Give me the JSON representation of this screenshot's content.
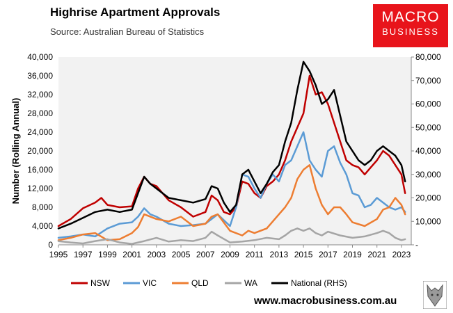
{
  "header": {
    "title": "Highrise Apartment Approvals",
    "subtitle": "Source: Australian Bureau of Statistics"
  },
  "logo": {
    "line1": "MACRO",
    "line2": "BUSINESS"
  },
  "footer": {
    "url": "www.macrobusiness.com.au"
  },
  "colors": {
    "nsw": "#c00000",
    "vic": "#5b9bd5",
    "qld": "#ed7d31",
    "wa": "#a5a5a5",
    "national": "#000000",
    "plot_bg": "#f2f2f2"
  },
  "chart_data": {
    "type": "line",
    "title": "Highrise Apartment Approvals",
    "ylabel": "Number (Rolling Annual)",
    "xlabel": "",
    "x_ticks": [
      "1995",
      "1997",
      "1999",
      "2001",
      "2003",
      "2005",
      "2007",
      "2009",
      "2011",
      "2013",
      "2015",
      "2017",
      "2019",
      "2021",
      "2023"
    ],
    "y_left_ticks": [
      "0",
      "4,000",
      "8,000",
      "12,000",
      "16,000",
      "20,000",
      "24,000",
      "28,000",
      "32,000",
      "36,000",
      "40,000"
    ],
    "y_right_ticks": [
      "-",
      "10,000",
      "20,000",
      "30,000",
      "40,000",
      "50,000",
      "60,000",
      "70,000",
      "80,000"
    ],
    "ylim_left": [
      0,
      40000
    ],
    "ylim_right": [
      0,
      80000
    ],
    "xlim": [
      1995,
      2023.8
    ],
    "legend": "bottom",
    "series": [
      {
        "name": "NSW",
        "axis": "left",
        "color": "#c00000",
        "x": [
          1995,
          1996,
          1997,
          1998,
          1998.5,
          1999,
          2000,
          2001,
          2001.5,
          2002,
          2002.5,
          2003,
          2004,
          2005,
          2006,
          2007,
          2007.5,
          2008,
          2008.5,
          2009,
          2009.5,
          2010,
          2010.5,
          2011,
          2011.5,
          2012,
          2012.5,
          2013,
          2013.5,
          2014,
          2014.5,
          2015,
          2015.5,
          2016,
          2016.5,
          2017,
          2017.5,
          2018,
          2018.5,
          2019,
          2019.5,
          2020,
          2020.5,
          2021,
          2021.5,
          2022,
          2022.5,
          2023,
          2023.3
        ],
        "y": [
          4000,
          5500,
          7800,
          9000,
          10000,
          8500,
          8000,
          8200,
          12000,
          14500,
          13000,
          12500,
          9500,
          8000,
          6000,
          7000,
          10500,
          9500,
          7000,
          6500,
          8000,
          13500,
          13000,
          11000,
          10000,
          12500,
          13500,
          15000,
          18000,
          22000,
          25000,
          28000,
          36000,
          32000,
          32500,
          30000,
          26000,
          22000,
          18000,
          17000,
          16500,
          15000,
          16500,
          18000,
          20000,
          19000,
          17000,
          15000,
          11000
        ]
      },
      {
        "name": "VIC",
        "axis": "left",
        "color": "#5b9bd5",
        "x": [
          1995,
          1996,
          1997,
          1998,
          1999,
          2000,
          2001,
          2001.5,
          2002,
          2002.5,
          2003,
          2004,
          2005,
          2006,
          2007,
          2007.5,
          2008,
          2009,
          2009.5,
          2010,
          2010.5,
          2011,
          2011.5,
          2012,
          2012.5,
          2013,
          2013.5,
          2014,
          2014.5,
          2015,
          2015.5,
          2016,
          2016.5,
          2017,
          2017.5,
          2018,
          2018.5,
          2019,
          2019.5,
          2020,
          2020.5,
          2021,
          2021.5,
          2022,
          2022.5,
          2023,
          2023.3
        ],
        "y": [
          1500,
          1800,
          2200,
          1800,
          3500,
          4500,
          4800,
          6000,
          7800,
          6500,
          6000,
          4500,
          4000,
          4200,
          4500,
          5500,
          6500,
          4000,
          8000,
          15000,
          14500,
          12000,
          10000,
          13000,
          15000,
          13500,
          17000,
          18000,
          21000,
          24000,
          18000,
          16000,
          14500,
          20000,
          21000,
          17500,
          15000,
          11000,
          10500,
          8000,
          8500,
          10000,
          9000,
          8000,
          7500,
          8000,
          7000
        ]
      },
      {
        "name": "QLD",
        "axis": "left",
        "color": "#ed7d31",
        "x": [
          1995,
          1996,
          1997,
          1998,
          1999,
          2000,
          2001,
          2001.5,
          2002,
          2003,
          2004,
          2005,
          2005.5,
          2006,
          2007,
          2007.5,
          2008,
          2009,
          2010,
          2010.5,
          2011,
          2012,
          2013,
          2013.5,
          2014,
          2014.5,
          2015,
          2015.5,
          2016,
          2016.5,
          2017,
          2017.5,
          2018,
          2018.5,
          2019,
          2020,
          2021,
          2021.5,
          2022,
          2022.5,
          2023,
          2023.3
        ],
        "y": [
          1000,
          1500,
          2200,
          2500,
          1000,
          1200,
          2500,
          3800,
          6500,
          5500,
          5000,
          6000,
          5000,
          4000,
          4500,
          6000,
          6500,
          3000,
          2000,
          3000,
          2500,
          3500,
          6500,
          8000,
          10000,
          14000,
          16000,
          17000,
          12000,
          8500,
          6500,
          8000,
          8000,
          6500,
          4800,
          4000,
          5500,
          7500,
          8000,
          10000,
          8500,
          6500
        ]
      },
      {
        "name": "WA",
        "axis": "left",
        "color": "#a5a5a5",
        "x": [
          1995,
          1996,
          1997,
          1998,
          1999,
          2000,
          2001,
          2002,
          2003,
          2004,
          2005,
          2006,
          2007,
          2007.5,
          2008,
          2009,
          2010,
          2011,
          2012,
          2013,
          2013.5,
          2014,
          2014.5,
          2015,
          2015.5,
          2016,
          2016.5,
          2017,
          2018,
          2019,
          2020,
          2021,
          2021.5,
          2022,
          2022.5,
          2023,
          2023.3
        ],
        "y": [
          800,
          500,
          300,
          800,
          1200,
          500,
          200,
          800,
          1500,
          700,
          1000,
          800,
          1500,
          2800,
          2000,
          500,
          700,
          1000,
          1500,
          1200,
          2000,
          3000,
          3500,
          3000,
          3500,
          2500,
          2000,
          2800,
          2000,
          1500,
          1800,
          2500,
          3000,
          2500,
          1500,
          1000,
          1200
        ]
      },
      {
        "name": "National (RHS)",
        "axis": "right",
        "color": "#000000",
        "x": [
          1995,
          1996,
          1997,
          1998,
          1999,
          2000,
          2001,
          2001.5,
          2002,
          2002.5,
          2003,
          2004,
          2005,
          2006,
          2007,
          2007.5,
          2008,
          2008.5,
          2009,
          2009.5,
          2010,
          2010.5,
          2011,
          2011.5,
          2012,
          2012.5,
          2013,
          2013.5,
          2014,
          2014.5,
          2015,
          2015.5,
          2016,
          2016.5,
          2017,
          2017.5,
          2018,
          2018.5,
          2019,
          2019.5,
          2020,
          2020.5,
          2021,
          2021.5,
          2022,
          2022.5,
          2023,
          2023.3
        ],
        "y": [
          7000,
          9000,
          11500,
          14000,
          15000,
          14000,
          15000,
          22000,
          29000,
          26000,
          24000,
          20000,
          19000,
          18000,
          19500,
          25000,
          24000,
          18000,
          14000,
          17000,
          30000,
          32000,
          27000,
          22000,
          26000,
          31000,
          34000,
          44000,
          52000,
          66000,
          78000,
          74000,
          68000,
          60000,
          62000,
          66000,
          55000,
          44000,
          40000,
          36000,
          34000,
          36000,
          40000,
          42000,
          40000,
          38000,
          34000,
          27000
        ]
      }
    ]
  }
}
